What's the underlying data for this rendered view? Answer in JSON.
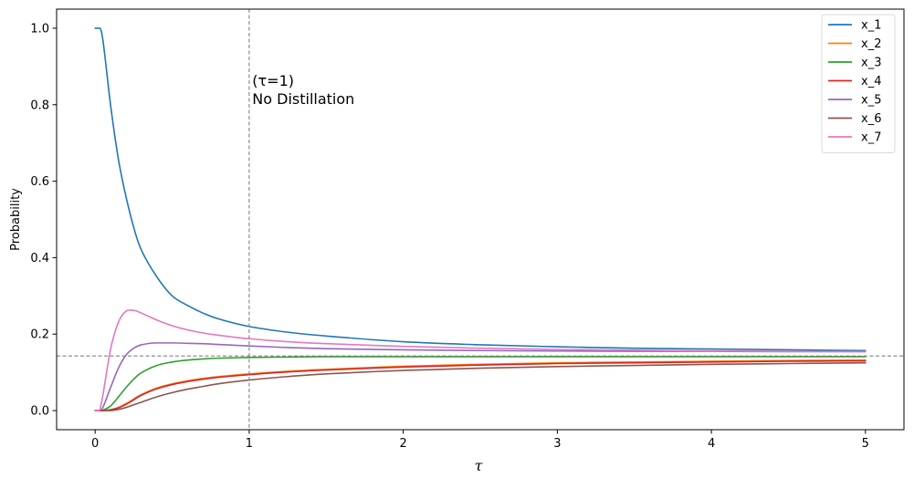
{
  "chart_data": {
    "type": "line",
    "title": "",
    "xlabel": "τ",
    "ylabel": "Probability",
    "xlim": [
      -0.25,
      5.25
    ],
    "ylim": [
      -0.05,
      1.05
    ],
    "xticks": [
      0,
      1,
      2,
      3,
      4,
      5
    ],
    "xtick_labels": [
      "0",
      "1",
      "2",
      "3",
      "4",
      "5"
    ],
    "yticks": [
      0.0,
      0.2,
      0.4,
      0.6,
      0.8,
      1.0
    ],
    "ytick_labels": [
      "0.0",
      "0.2",
      "0.4",
      "0.6",
      "0.8",
      "1.0"
    ],
    "grid": false,
    "legend_position": "top-right",
    "reference_lines": {
      "vertical_x": 1.0,
      "horizontal_y": 0.1429,
      "style": "dashed",
      "color": "#808080"
    },
    "annotation": {
      "x": 1.02,
      "y": 0.8,
      "line1": "(τ=1)",
      "line2": "No Distillation"
    },
    "x": [
      0,
      0.025,
      0.05,
      0.1,
      0.15,
      0.2,
      0.25,
      0.3,
      0.4,
      0.5,
      0.6,
      0.7,
      0.8,
      1.0,
      1.25,
      1.5,
      2.0,
      2.5,
      3.0,
      3.5,
      4.0,
      4.5,
      5.0
    ],
    "series": [
      {
        "name": "x_1",
        "color": "#1f77b4",
        "values": [
          1.0,
          1.0,
          0.97,
          0.8,
          0.66,
          0.56,
          0.48,
          0.42,
          0.35,
          0.3,
          0.275,
          0.255,
          0.24,
          0.22,
          0.205,
          0.195,
          0.18,
          0.172,
          0.167,
          0.163,
          0.161,
          0.159,
          0.157
        ]
      },
      {
        "name": "x_2",
        "color": "#ff7f0e",
        "values": [
          0.0,
          0.0,
          0.0,
          0.002,
          0.008,
          0.018,
          0.03,
          0.042,
          0.059,
          0.07,
          0.078,
          0.084,
          0.089,
          0.096,
          0.103,
          0.108,
          0.116,
          0.121,
          0.125,
          0.127,
          0.129,
          0.131,
          0.132
        ]
      },
      {
        "name": "x_3",
        "color": "#2ca02c",
        "values": [
          0.0,
          0.0,
          0.001,
          0.012,
          0.035,
          0.06,
          0.082,
          0.099,
          0.118,
          0.127,
          0.132,
          0.135,
          0.137,
          0.139,
          0.14,
          0.141,
          0.141,
          0.141,
          0.141,
          0.141,
          0.141,
          0.141,
          0.141
        ]
      },
      {
        "name": "x_4",
        "color": "#d62728",
        "values": [
          0.0,
          0.0,
          0.0,
          0.002,
          0.007,
          0.016,
          0.028,
          0.04,
          0.057,
          0.068,
          0.076,
          0.082,
          0.087,
          0.094,
          0.101,
          0.106,
          0.114,
          0.119,
          0.123,
          0.125,
          0.127,
          0.129,
          0.13
        ]
      },
      {
        "name": "x_5",
        "color": "#9467bd",
        "values": [
          0.0,
          0.0,
          0.008,
          0.06,
          0.11,
          0.145,
          0.163,
          0.172,
          0.177,
          0.177,
          0.176,
          0.175,
          0.173,
          0.169,
          0.165,
          0.162,
          0.159,
          0.157,
          0.156,
          0.155,
          0.155,
          0.154,
          0.154
        ]
      },
      {
        "name": "x_6",
        "color": "#8c564b",
        "values": [
          0.0,
          0.0,
          0.0,
          0.0,
          0.003,
          0.008,
          0.015,
          0.022,
          0.036,
          0.047,
          0.056,
          0.063,
          0.07,
          0.08,
          0.089,
          0.096,
          0.105,
          0.111,
          0.115,
          0.118,
          0.121,
          0.123,
          0.125
        ]
      },
      {
        "name": "x_7",
        "color": "#e377c2",
        "values": [
          0.0,
          0.0,
          0.04,
          0.16,
          0.23,
          0.26,
          0.262,
          0.255,
          0.237,
          0.222,
          0.211,
          0.203,
          0.197,
          0.188,
          0.18,
          0.175,
          0.168,
          0.163,
          0.16,
          0.158,
          0.156,
          0.155,
          0.154
        ]
      }
    ]
  }
}
